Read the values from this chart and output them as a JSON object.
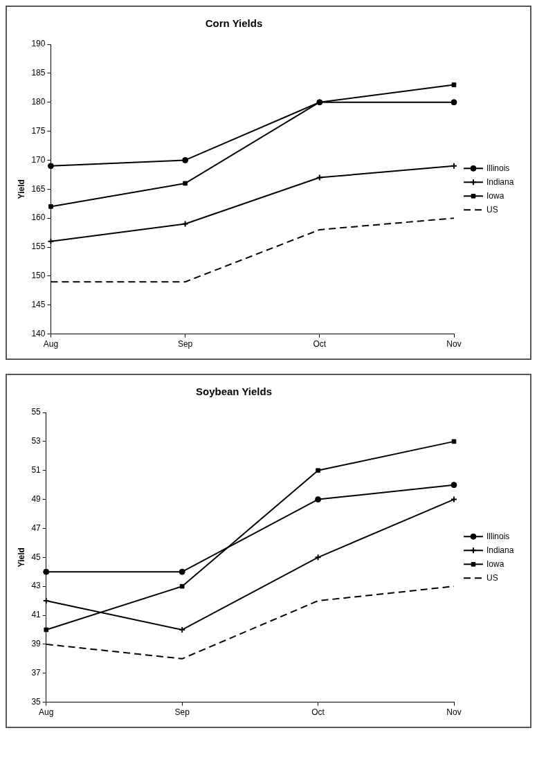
{
  "chart_data": [
    {
      "type": "line",
      "title": "Corn Yields",
      "ylabel": "Yield",
      "categories": [
        "Aug",
        "Sep",
        "Oct",
        "Nov"
      ],
      "ylim": [
        140,
        190
      ],
      "yticks": [
        140,
        145,
        150,
        155,
        160,
        165,
        170,
        175,
        180,
        185,
        190
      ],
      "legend": "right",
      "series": [
        {
          "name": "Illinois",
          "color": "#000000",
          "marker": "circle",
          "values": [
            169,
            170,
            180,
            180
          ]
        },
        {
          "name": "Indiana",
          "color": "#000000",
          "marker": "cross",
          "values": [
            156,
            159,
            167,
            169
          ]
        },
        {
          "name": "Iowa",
          "color": "#000000",
          "marker": "square",
          "values": [
            162,
            166,
            180,
            183
          ]
        },
        {
          "name": "US",
          "color": "#000000",
          "marker": "none",
          "line_style": "dashed",
          "values": [
            149,
            149,
            158,
            160
          ]
        }
      ]
    },
    {
      "type": "line",
      "title": "Soybean Yields",
      "ylabel": "Yield",
      "categories": [
        "Aug",
        "Sep",
        "Oct",
        "Nov"
      ],
      "ylim": [
        35,
        55
      ],
      "yticks": [
        35,
        37,
        39,
        41,
        43,
        45,
        47,
        49,
        51,
        53,
        55
      ],
      "legend": "right",
      "series": [
        {
          "name": "Illinois",
          "color": "#000000",
          "marker": "circle",
          "values": [
            44,
            44,
            49,
            50
          ]
        },
        {
          "name": "Indiana",
          "color": "#000000",
          "marker": "cross",
          "values": [
            42,
            40,
            45,
            49
          ]
        },
        {
          "name": "Iowa",
          "color": "#000000",
          "marker": "square",
          "values": [
            40,
            43,
            51,
            53
          ]
        },
        {
          "name": "US",
          "color": "#000000",
          "marker": "none",
          "line_style": "dashed",
          "values": [
            39,
            38,
            42,
            43
          ]
        }
      ]
    }
  ]
}
